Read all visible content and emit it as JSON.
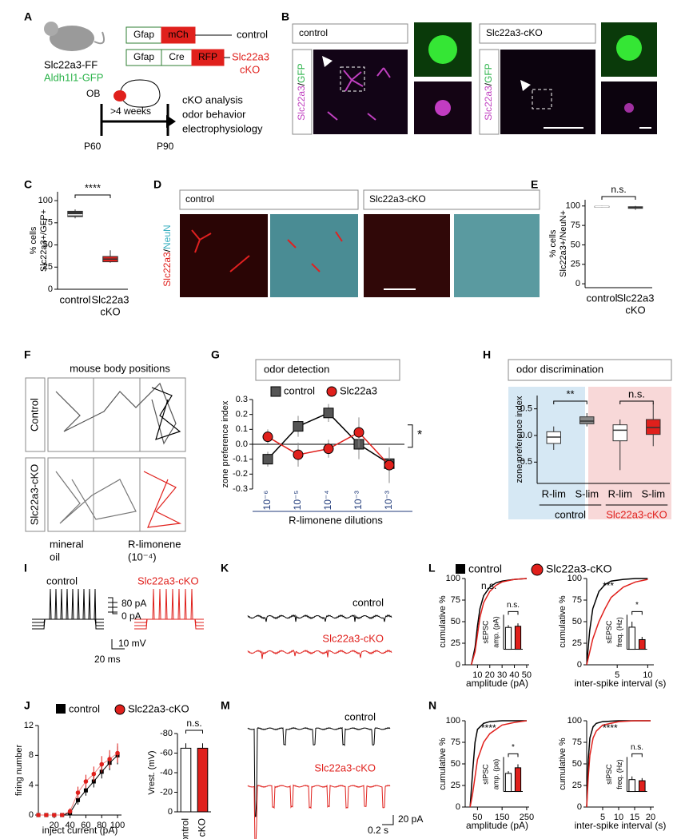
{
  "panel_labels": [
    "A",
    "B",
    "C",
    "D",
    "E",
    "F",
    "G",
    "H",
    "I",
    "J",
    "K",
    "L",
    "M",
    "N"
  ],
  "A": {
    "mouse_line": "Slc22a3-FF",
    "reporter": "Aldh1l1-GFP",
    "construct_control": [
      "Gfap",
      "mCh"
    ],
    "control": "control",
    "construct_cko": [
      "Gfap",
      "Cre",
      "RFP"
    ],
    "cko": [
      "Slc22a3",
      "cKO"
    ],
    "region": "OB",
    "duration": ">4 weeks",
    "start": "P60",
    "end": "P90",
    "analyses": [
      "cKO analysis",
      "odor behavior",
      "electrophysiology"
    ]
  },
  "B": {
    "groups": [
      "control",
      "Slc22a3-cKO"
    ],
    "stain": [
      "Slc22a3",
      "/",
      "GFP"
    ]
  },
  "C": {
    "type": "box",
    "ylabel": [
      "% cells",
      "Slc22a3+/GFP+"
    ],
    "categories": [
      [
        "control"
      ],
      [
        "Slc22a3",
        "cKO"
      ]
    ],
    "ylim": [
      0,
      110
    ],
    "yticks": [
      0,
      25,
      50,
      75,
      100
    ],
    "boxes": [
      {
        "low": 80,
        "q1": 82,
        "median": 84,
        "q3": 88,
        "high": 90
      },
      {
        "low": 30,
        "q1": 31,
        "median": 34,
        "q3": 37,
        "high": 44
      }
    ],
    "colors": [
      "#333333",
      "#e0201c"
    ],
    "significance": "****"
  },
  "D": {
    "groups": [
      "control",
      "Slc22a3-cKO"
    ],
    "stain": [
      "Slc22a3",
      "/",
      "NeuN"
    ]
  },
  "E": {
    "type": "box",
    "ylabel": [
      "% cells",
      "Slc22a3+/NeuN+"
    ],
    "categories": [
      [
        "control"
      ],
      [
        "Slc22a3",
        "cKO"
      ]
    ],
    "ylim": [
      -5,
      108
    ],
    "yticks": [
      0,
      25,
      50,
      75,
      100
    ],
    "boxes": [
      {
        "low": 98,
        "q1": 98.5,
        "median": 99,
        "q3": 99.5,
        "high": 100
      },
      {
        "low": 95,
        "q1": 97,
        "median": 98,
        "q3": 99,
        "high": 100
      }
    ],
    "colors": [
      "#333333",
      "#e0201c"
    ],
    "significance": "n.s."
  },
  "F": {
    "title": "mouse body positions",
    "groups": [
      "Control",
      "Slc22a3-cKO"
    ],
    "left_zone": [
      "mineral",
      "oil"
    ],
    "right_zone": [
      "R-limonene",
      "(10⁻⁴)"
    ]
  },
  "G": {
    "type": "line",
    "title": "odor detection",
    "ylabel": "zone preference index",
    "xlabel": "R-limonene dilutions",
    "categories": [
      "10⁻⁶",
      "10⁻⁵",
      "10⁻⁴",
      "10⁻³",
      "10⁻³"
    ],
    "ylim": [
      -0.3,
      0.3
    ],
    "yticks": [
      0.3,
      0.2,
      0.1,
      {
        "value": 0,
        "label": "0.0"
      },
      -0.1,
      -0.2,
      -0.3
    ],
    "series": [
      {
        "name": "control",
        "color": "#555555",
        "marker": "square",
        "values": [
          -0.1,
          0.12,
          0.21,
          0,
          -0.13
        ],
        "errors": [
          0.05,
          0.07,
          0.06,
          0.1,
          0.07
        ]
      },
      {
        "name": "Slc22a3",
        "color": "#e0201c",
        "marker": "circle",
        "values": [
          0.05,
          -0.07,
          -0.03,
          0.08,
          -0.14
        ],
        "errors": [
          0.05,
          0.08,
          0.06,
          0.1,
          0.12
        ]
      }
    ],
    "significance": "*"
  },
  "H": {
    "type": "box",
    "title": "odor discrimination",
    "ylabel": "zone preference index",
    "categories": [
      "R-lim",
      "S-lim",
      "R-lim",
      "S-lim"
    ],
    "groups": [
      "control",
      "Slc22a3-cKO"
    ],
    "ylim": [
      -0.9,
      0.75
    ],
    "yticks": [
      -0.5,
      {
        "value": 0,
        "label": "0.0"
      },
      0.5
    ],
    "boxes": [
      {
        "low": -0.27,
        "q1": -0.15,
        "median": -0.03,
        "q3": 0.07,
        "high": 0.17
      },
      {
        "low": 0.17,
        "q1": 0.22,
        "median": 0.27,
        "q3": 0.35,
        "high": 0.42
      },
      {
        "low": -0.65,
        "q1": -0.1,
        "median": 0.1,
        "q3": 0.2,
        "high": 0.3
      },
      {
        "low": -0.2,
        "q1": 0.02,
        "median": 0.15,
        "q3": 0.3,
        "high": 0.6
      }
    ],
    "colors": [
      "#ffffff",
      "#888888",
      "#ffffff",
      "#e0201c"
    ],
    "significance": [
      "**",
      "n.s."
    ]
  },
  "I": {
    "groups": [
      "control",
      "Slc22a3-cKO"
    ],
    "steps": [
      "80 pA",
      "0 pA"
    ],
    "scale": [
      "10 mV",
      "20 ms"
    ]
  },
  "J": {
    "legend": [
      "control",
      "Slc22a3-cKO"
    ],
    "line": {
      "type": "line",
      "ylabel": "firing number",
      "xlabel": "inject current (pA)",
      "xlim": [
        0,
        105
      ],
      "ylim": [
        0,
        12
      ],
      "xticks": [
        20,
        40,
        60,
        80,
        100
      ],
      "yticks": [
        0,
        4,
        8,
        12
      ],
      "x": [
        0,
        10,
        20,
        30,
        40,
        50,
        60,
        70,
        80,
        90,
        100
      ],
      "series": [
        {
          "color": "#000000",
          "marker": "square",
          "values": [
            0,
            0,
            0,
            0,
            0.3,
            2,
            3.3,
            4.5,
            5.8,
            7,
            8
          ],
          "errors": [
            0,
            0,
            0,
            0,
            0.3,
            0.6,
            0.7,
            0.8,
            0.9,
            1,
            1.2
          ]
        },
        {
          "color": "#e0201c",
          "marker": "circle",
          "values": [
            0,
            0,
            0,
            0,
            0.5,
            3,
            4.5,
            5.5,
            6.8,
            7.5,
            8.3
          ],
          "errors": [
            0,
            0,
            0,
            0,
            0.4,
            0.8,
            0.9,
            1,
            1.1,
            1.2,
            1.3
          ]
        }
      ]
    },
    "bar": {
      "type": "bar",
      "ylabel": "Vrest. (mV)",
      "categories": [
        "control",
        "cKO"
      ],
      "ylim": [
        0,
        -80
      ],
      "yticks": [
        -80,
        -60,
        -40,
        -20,
        0
      ],
      "values": [
        -65,
        -65
      ],
      "errors": [
        5,
        5
      ],
      "colors": [
        "#ffffff",
        "#e0201c"
      ],
      "significance": "n.s."
    }
  },
  "K": {
    "groups": [
      "control",
      "Slc22a3-cKO"
    ]
  },
  "L": {
    "legend": [
      "control",
      "Slc22a3-cKO"
    ],
    "amplitude": {
      "type": "line",
      "significance": "n.s.",
      "ylabel": "cumulative %",
      "xlabel": "amplitude (pA)",
      "xlim": [
        0,
        52
      ],
      "ylim": [
        0,
        100
      ],
      "xticks": [
        10,
        20,
        30,
        40,
        50
      ],
      "yticks": [
        0,
        25,
        50,
        75,
        100
      ],
      "x": [
        5,
        8,
        10,
        12,
        15,
        20,
        25,
        30,
        40,
        50
      ],
      "series": [
        {
          "color": "#000000",
          "values": [
            0,
            20,
            45,
            65,
            80,
            90,
            95,
            97,
            99,
            100
          ]
        },
        {
          "color": "#e0201c",
          "values": [
            0,
            15,
            35,
            55,
            72,
            85,
            92,
            96,
            99,
            100
          ]
        }
      ],
      "inset": {
        "type": "bar",
        "ylabel": [
          "sEPSC",
          "amp. (pA)"
        ],
        "ylim": [
          0,
          60
        ],
        "values": [
          38,
          40
        ],
        "errors": [
          4,
          5
        ],
        "colors": [
          "#ffffff",
          "#e0201c"
        ],
        "significance": "n.s."
      }
    },
    "interval": {
      "type": "line",
      "significance": "***",
      "ylabel": "cumulative %",
      "xlabel": "inter-spike interval (s)",
      "xlim": [
        0,
        11
      ],
      "ylim": [
        0,
        100
      ],
      "xticks": [
        5,
        10
      ],
      "yticks": [
        0,
        25,
        50,
        75,
        100
      ],
      "x": [
        0,
        0.5,
        1,
        2,
        3,
        4,
        6,
        8,
        10
      ],
      "series": [
        {
          "color": "#000000",
          "values": [
            0,
            40,
            65,
            85,
            93,
            97,
            99,
            100,
            100
          ]
        },
        {
          "color": "#e0201c",
          "values": [
            0,
            15,
            30,
            50,
            65,
            78,
            90,
            96,
            99
          ]
        }
      ],
      "inset": {
        "type": "bar",
        "ylabel": [
          "sEPSC",
          "freq. (Hz)"
        ],
        "ylim": [
          0,
          2.5
        ],
        "values": [
          1.6,
          0.7
        ],
        "errors": [
          0.4,
          0.2
        ],
        "colors": [
          "#ffffff",
          "#e0201c"
        ],
        "significance": "*"
      }
    }
  },
  "M": {
    "groups": [
      "control",
      "Slc22a3-cKO"
    ],
    "scale": [
      "20 pA",
      "0.2 s"
    ]
  },
  "N": {
    "amplitude": {
      "type": "line",
      "significance": "****",
      "ylabel": "cumulative %",
      "xlabel": "amplitude (pA)",
      "xlim": [
        0,
        260
      ],
      "ylim": [
        0,
        100
      ],
      "xticks": [
        50,
        150,
        250
      ],
      "yticks": [
        0,
        25,
        50,
        75,
        100
      ],
      "x": [
        20,
        30,
        40,
        50,
        75,
        100,
        150,
        200,
        250
      ],
      "series": [
        {
          "color": "#000000",
          "values": [
            0,
            40,
            75,
            90,
            97,
            99,
            100,
            100,
            100
          ]
        },
        {
          "color": "#e0201c",
          "values": [
            0,
            15,
            35,
            55,
            75,
            85,
            95,
            98,
            100
          ]
        }
      ],
      "inset": {
        "type": "bar",
        "ylabel": [
          "sIPSC",
          "amp. (pa)"
        ],
        "ylim": [
          0,
          80
        ],
        "values": [
          42,
          55
        ],
        "errors": [
          5,
          8
        ],
        "colors": [
          "#ffffff",
          "#e0201c"
        ],
        "significance": "*"
      }
    },
    "interval": {
      "type": "line",
      "significance": "****",
      "ylabel": "cumulative %",
      "xlabel": "inter-spike interval (s)",
      "xlim": [
        0,
        21
      ],
      "ylim": [
        0,
        100
      ],
      "xticks": [
        5,
        10,
        15,
        20
      ],
      "yticks": [
        0,
        25,
        50,
        75,
        100
      ],
      "x": [
        0,
        0.5,
        1,
        2,
        3,
        5,
        10,
        15,
        20
      ],
      "series": [
        {
          "color": "#000000",
          "values": [
            0,
            55,
            80,
            93,
            97,
            99,
            100,
            100,
            100
          ]
        },
        {
          "color": "#e0201c",
          "values": [
            0,
            35,
            60,
            80,
            88,
            95,
            99,
            100,
            100
          ]
        }
      ],
      "inset": {
        "type": "bar",
        "ylabel": [
          "sIPSC",
          "freq. (Hz)"
        ],
        "ylim": [
          0,
          1.6
        ],
        "values": [
          0.55,
          0.5
        ],
        "errors": [
          0.15,
          0.12
        ],
        "colors": [
          "#ffffff",
          "#e0201c"
        ],
        "significance": "n.s."
      }
    }
  }
}
